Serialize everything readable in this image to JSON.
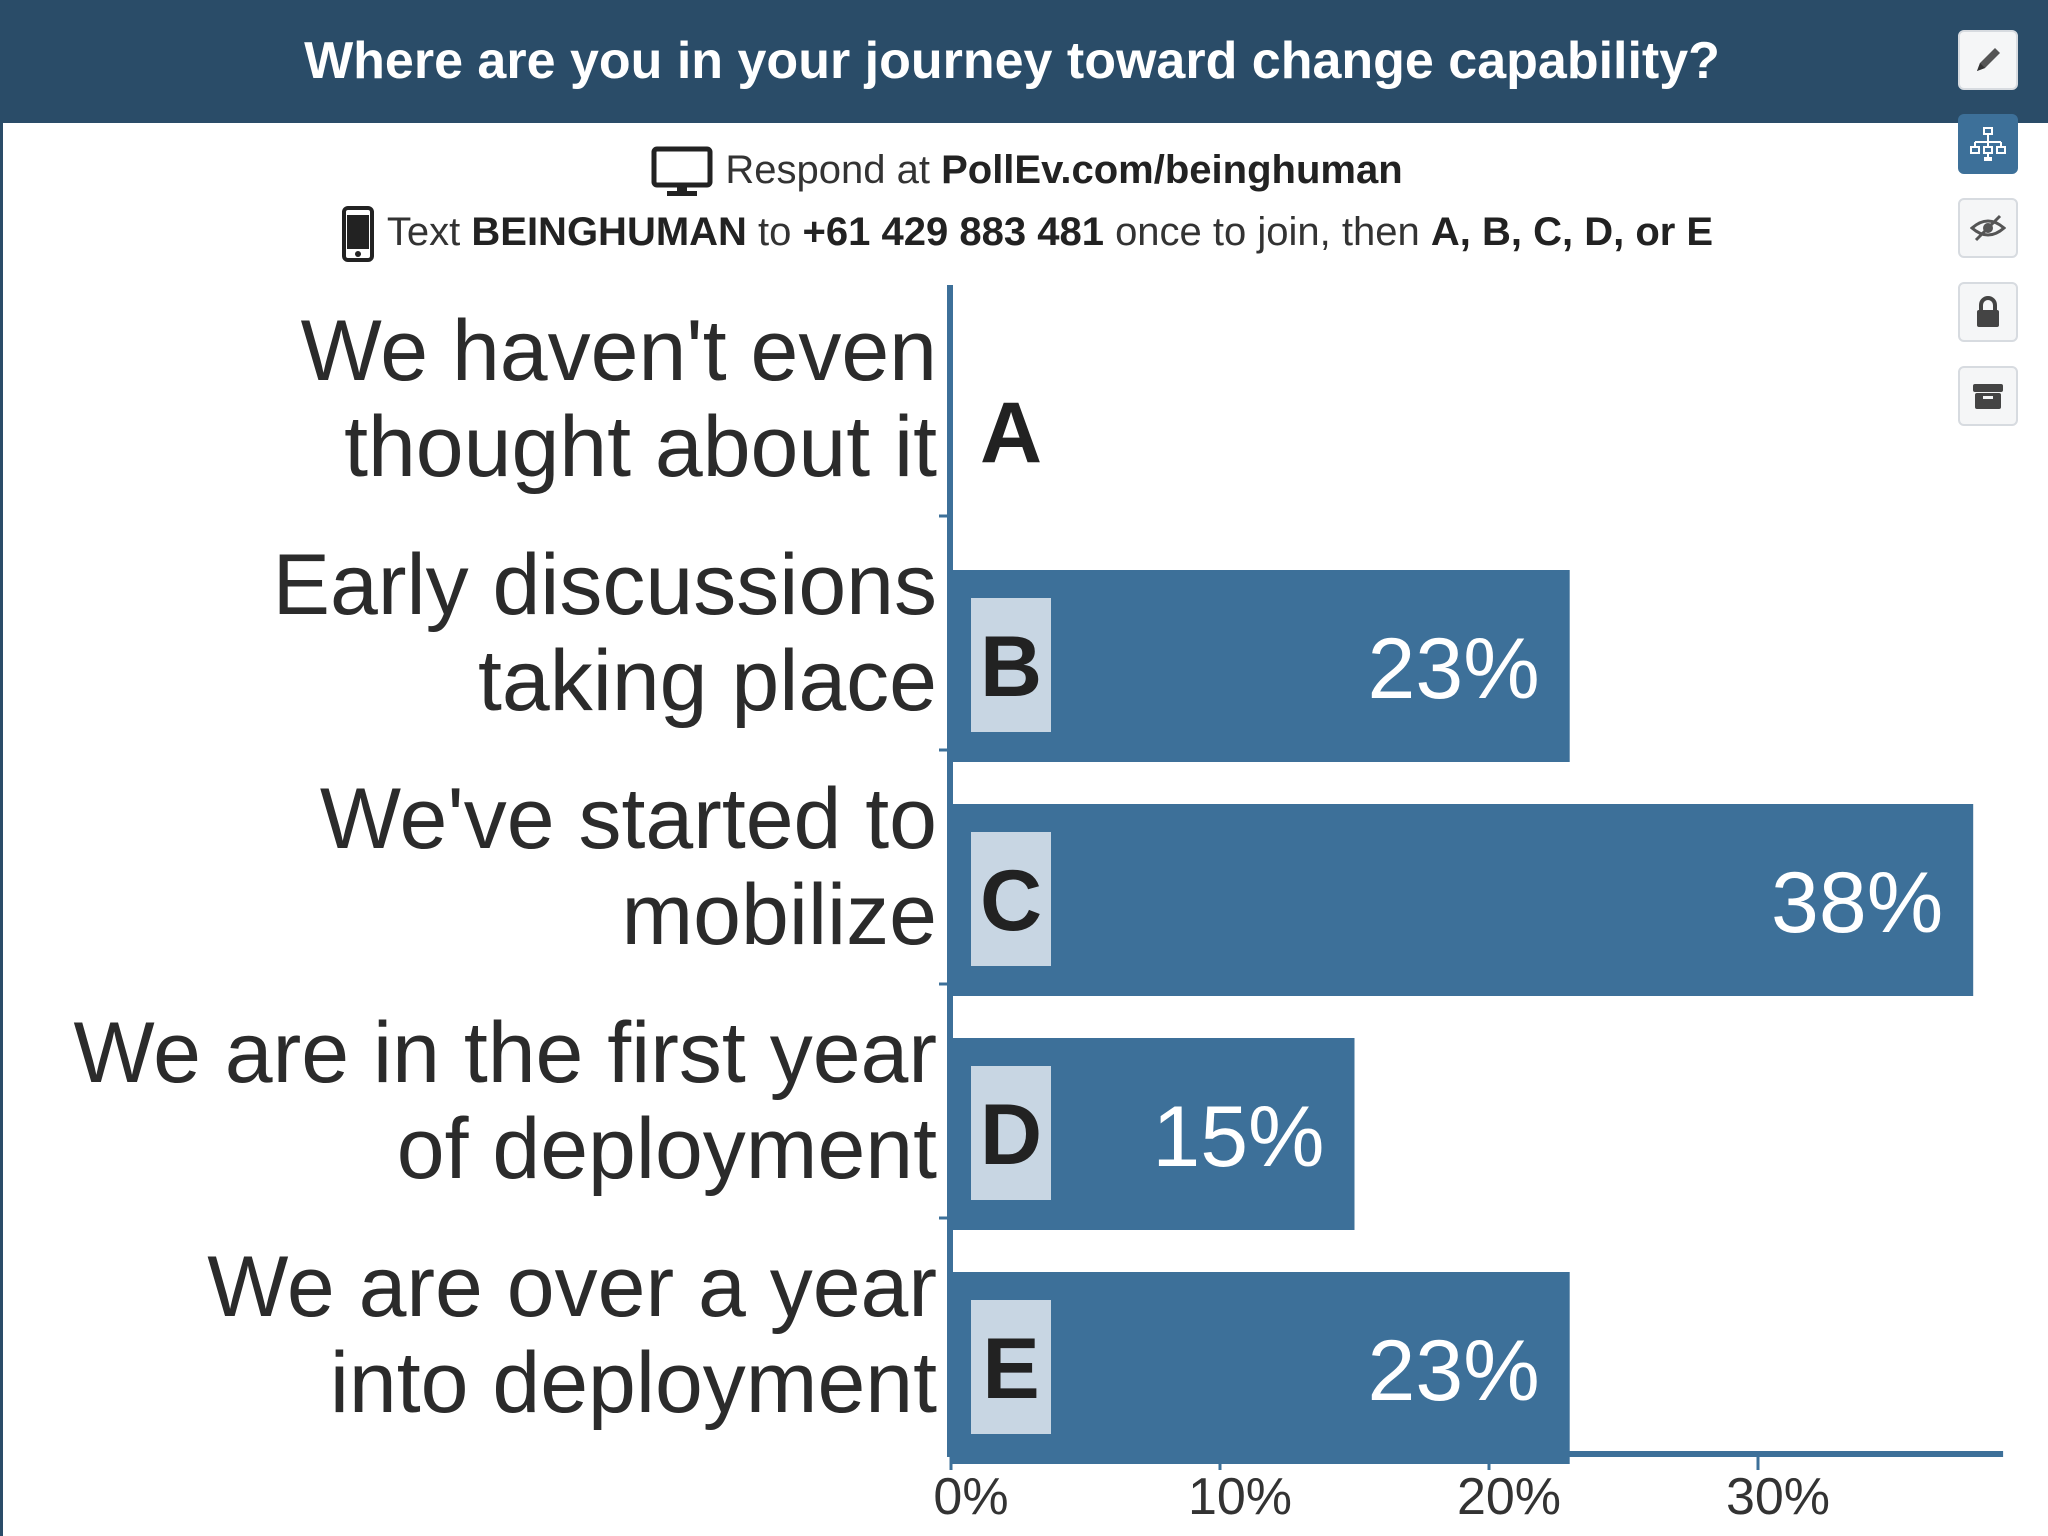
{
  "poll": {
    "title": "Where are you in your journey toward change capability?",
    "respond_prefix": "Respond at",
    "respond_url": "PollEv.com/beinghuman",
    "text_prefix": "Text",
    "text_keyword": "BEINGHUMAN",
    "text_to": "to",
    "text_number": "+61 429 883 481",
    "text_middle": "once to join, then",
    "text_options": "A, B, C, D, or E",
    "monitor_icon": "monitor-icon",
    "phone_icon": "phone-icon"
  },
  "toolbar": {
    "tools": [
      {
        "name": "pencil-icon",
        "active": false
      },
      {
        "name": "network-icon",
        "active": true
      },
      {
        "name": "eye-hidden-icon",
        "active": false
      },
      {
        "name": "lock-icon",
        "active": false
      },
      {
        "name": "archive-icon",
        "active": false
      }
    ]
  },
  "chart_data": {
    "type": "bar",
    "orientation": "horizontal",
    "categories": [
      {
        "letter": "A",
        "lines": [
          "We haven't even",
          "thought about it"
        ]
      },
      {
        "letter": "B",
        "lines": [
          "Early discussions",
          "taking place"
        ]
      },
      {
        "letter": "C",
        "lines": [
          "We've started to",
          "mobilize"
        ]
      },
      {
        "letter": "D",
        "lines": [
          "We are in the first year",
          "of deployment"
        ]
      },
      {
        "letter": "E",
        "lines": [
          "We are over a year",
          "into deployment"
        ]
      }
    ],
    "values": [
      0,
      23,
      38,
      15,
      23
    ],
    "value_labels": [
      "",
      "23%",
      "38%",
      "15%",
      "23%"
    ],
    "xlim": [
      0,
      39
    ],
    "xticks": [
      0,
      10,
      20,
      30
    ],
    "xtick_labels": [
      "0%",
      "10%",
      "20%",
      "30%"
    ],
    "bar_color": "#3d7099",
    "letter_box_color": "#c8d6e3",
    "axis_color": "#3d7099",
    "grid": false,
    "legend": "none"
  }
}
